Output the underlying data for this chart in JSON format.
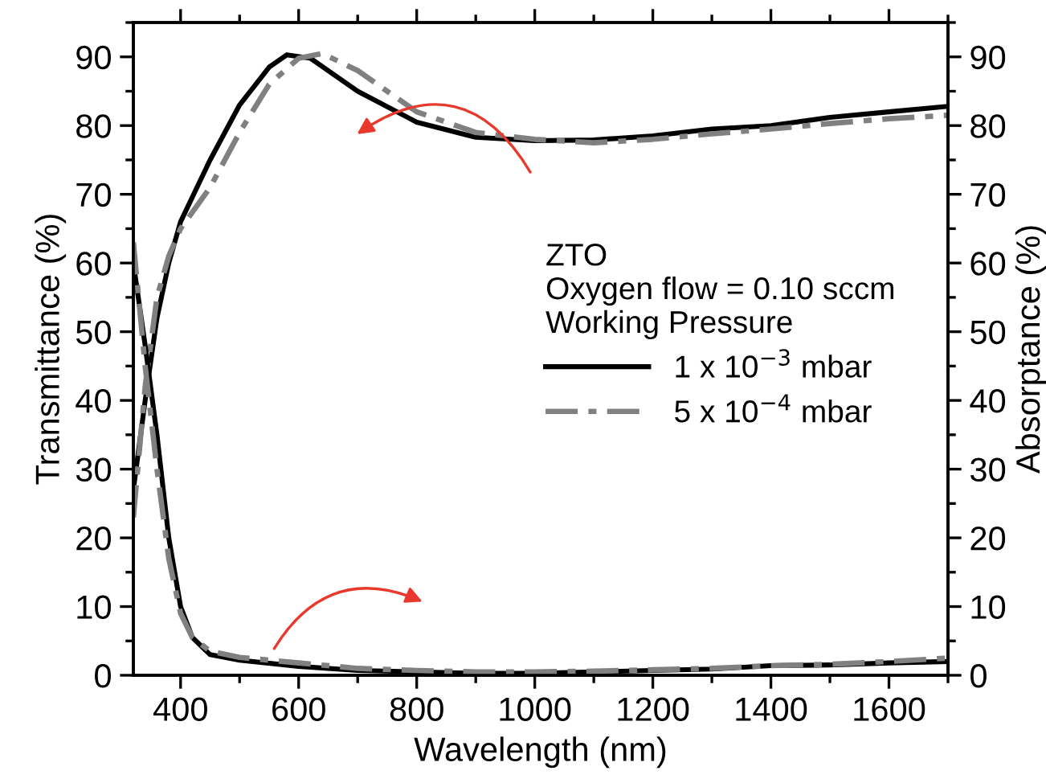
{
  "chart_data": {
    "type": "line",
    "xlabel": "Wavelength (nm)",
    "ylabel": "Transmittance (%)",
    "y2label": "Absorptance (%)",
    "legend_title": "ZTO\nOxygen flow = 0.10 sccm\nWorking Pressure",
    "legend": "right",
    "grid": false,
    "marker": "none",
    "xlim": [
      320,
      1700
    ],
    "xticks": [
      400,
      600,
      800,
      1000,
      1200,
      1400,
      1600
    ],
    "ylim": [
      0,
      95
    ],
    "yticks": [
      0,
      10,
      20,
      30,
      40,
      50,
      60,
      70,
      80,
      90
    ],
    "y2lim": [
      0,
      95
    ],
    "y2ticks": [
      0,
      10,
      20,
      30,
      40,
      50,
      60,
      70,
      80,
      90
    ],
    "series": [
      {
        "name": "1 x 10$^{−3}$ mbar",
        "color": "#000000",
        "line_style": "solid",
        "x": [
          320,
          340,
          360,
          380,
          400,
          450,
          500,
          550,
          580,
          620,
          700,
          800,
          900,
          1000,
          1100,
          1200,
          1300,
          1400,
          1500,
          1600,
          1700
        ],
        "values": [
          27,
          40,
          52,
          60,
          66,
          75,
          83,
          88.5,
          90.3,
          89.8,
          85,
          80.5,
          78.3,
          77.8,
          77.9,
          78.5,
          79.5,
          80,
          81.2,
          82,
          82.8
        ]
      },
      {
        "name": "5 x 10$^{−4}$ mbar",
        "color": "#808080",
        "line_style": "dashdot",
        "x": [
          320,
          340,
          360,
          380,
          400,
          450,
          500,
          550,
          600,
          640,
          700,
          800,
          900,
          1000,
          1100,
          1200,
          1300,
          1400,
          1500,
          1600,
          1700
        ],
        "values": [
          23,
          42,
          55,
          61,
          65,
          71,
          79,
          86,
          89.8,
          90.5,
          88,
          82,
          79,
          78,
          77.5,
          78,
          78.8,
          79.5,
          80.3,
          81,
          81.5
        ]
      },
      {
        "color": "#000000",
        "line_style": "solid",
        "axis": "y2",
        "x": [
          320,
          340,
          360,
          380,
          400,
          420,
          450,
          500,
          600,
          700,
          800,
          900,
          1000,
          1100,
          1200,
          1300,
          1400,
          1500,
          1600,
          1700
        ],
        "values": [
          60,
          48,
          35,
          20,
          10,
          5.5,
          3,
          2.2,
          1.3,
          0.7,
          0.5,
          0.3,
          0.3,
          0.5,
          0.7,
          0.9,
          1.4,
          1.5,
          1.8,
          2
        ]
      },
      {
        "color": "#808080",
        "line_style": "dashdot",
        "axis": "y2",
        "x": [
          320,
          340,
          360,
          380,
          400,
          420,
          450,
          500,
          600,
          700,
          800,
          900,
          1000,
          1100,
          1200,
          1300,
          1400,
          1500,
          1600,
          1700
        ],
        "values": [
          63,
          45,
          30,
          17,
          9,
          5.5,
          3.5,
          2.6,
          1.8,
          1.0,
          0.7,
          0.5,
          0.5,
          0.6,
          0.8,
          1.0,
          1.4,
          1.6,
          2,
          2.5
        ]
      }
    ]
  }
}
